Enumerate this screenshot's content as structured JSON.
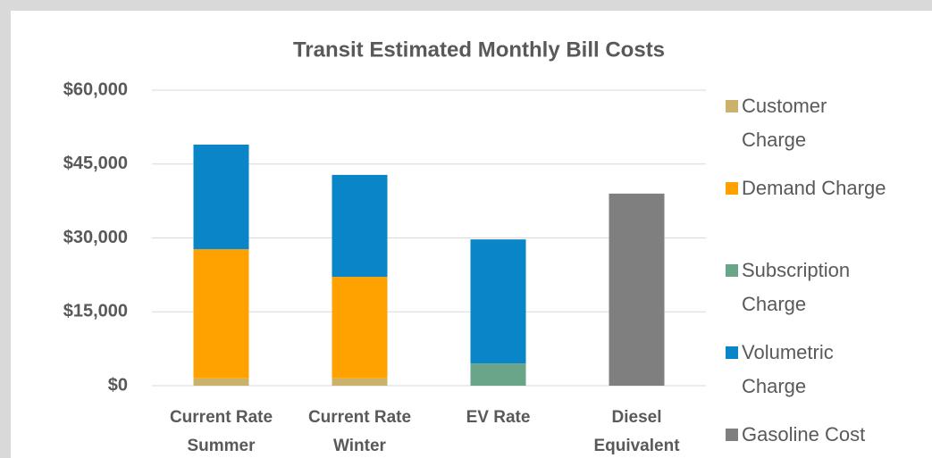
{
  "chart_data": {
    "type": "bar",
    "stacked": true,
    "title": "Transit Estimated Monthly Bill Costs",
    "categories": [
      "Current Rate Summer",
      "Current Rate Winter",
      "EV Rate",
      "Diesel Equivalent"
    ],
    "series": [
      {
        "name": "Customer Charge",
        "color": "#cbb26a",
        "values": [
          1500,
          1500,
          null,
          null
        ]
      },
      {
        "name": "Demand Charge",
        "color": "#ffa200",
        "values": [
          26200,
          20600,
          null,
          null
        ]
      },
      {
        "name": "Subscription Charge",
        "color": "#6aa58a",
        "values": [
          null,
          null,
          4500,
          null
        ]
      },
      {
        "name": "Volumetric Charge",
        "color": "#0a85c8",
        "values": [
          21250,
          20700,
          25200,
          null
        ]
      },
      {
        "name": "Gasoline Cost",
        "color": "#7f7f7f",
        "values": [
          null,
          null,
          null,
          39000
        ]
      }
    ],
    "ylim": [
      0,
      60000
    ],
    "yticks": [
      {
        "value": 0,
        "label": "$0"
      },
      {
        "value": 15000,
        "label": "$15,000"
      },
      {
        "value": 30000,
        "label": "$30,000"
      },
      {
        "value": 45000,
        "label": "$45,000"
      },
      {
        "value": 60000,
        "label": "$60,000"
      }
    ],
    "grid": true,
    "legend": "right"
  }
}
